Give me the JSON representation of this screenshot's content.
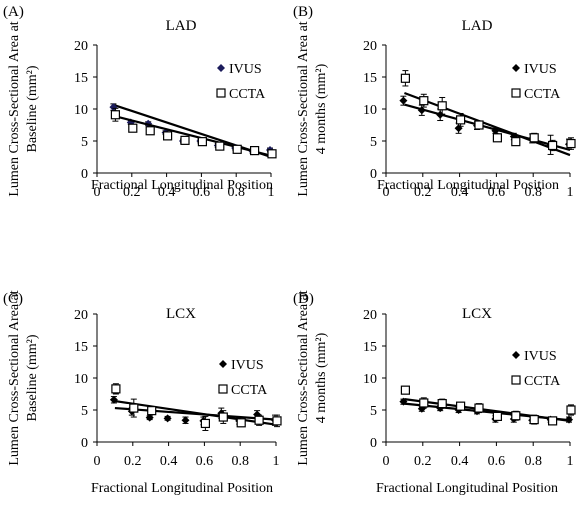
{
  "chart_data": [
    {
      "type": "scatter",
      "panel_label": "(A)",
      "title": "LAD",
      "xlabel": "Fractional Longitudinal Position",
      "ylabel_lines": [
        "Lumen Cross-Sectional Area at",
        "Baseline (mm²)"
      ],
      "xlim": [
        0,
        1
      ],
      "ylim": [
        0,
        20
      ],
      "x_ticks": [
        "0",
        "0.2",
        "0.4",
        "0.6",
        "0.8",
        "1"
      ],
      "y_ticks": [
        "0",
        "5",
        "10",
        "15",
        "20"
      ],
      "legend_position": "right",
      "series": [
        {
          "name": "IVUS",
          "marker": "diamond",
          "color": "#1c1c5c",
          "x": [
            0.1,
            0.2,
            0.3,
            0.4,
            0.5,
            0.6,
            0.7,
            0.8,
            0.9,
            1.0
          ],
          "y": [
            10.3,
            7.9,
            7.7,
            6.3,
            5.0,
            5.0,
            4.3,
            3.9,
            3.4,
            3.6
          ],
          "err": [
            0.5,
            0.3,
            0.3,
            0.3,
            0.3,
            0.3,
            0.3,
            0.3,
            0.3,
            0.3
          ],
          "fit": [
            10.6,
            2.5
          ]
        },
        {
          "name": "CCTA",
          "marker": "square-open",
          "color": "#000000",
          "x": [
            0.1,
            0.2,
            0.3,
            0.4,
            0.5,
            0.6,
            0.7,
            0.8,
            0.9,
            1.0
          ],
          "y": [
            9.1,
            7.0,
            6.6,
            5.8,
            5.1,
            4.9,
            4.2,
            3.7,
            3.5,
            3.0
          ],
          "err": [
            1.0,
            0.4,
            0.3,
            0.4,
            0.3,
            0.3,
            0.3,
            0.3,
            0.3,
            0.4
          ],
          "fit": [
            8.9,
            2.7
          ]
        }
      ]
    },
    {
      "type": "scatter",
      "panel_label": "(B)",
      "title": "LAD",
      "xlabel": "Fractional Longitudinal Position",
      "ylabel_lines": [
        "Lumen Cross-Sectional Area at",
        "4 months (mm²)"
      ],
      "xlim": [
        0,
        1
      ],
      "ylim": [
        0,
        20
      ],
      "x_ticks": [
        "0",
        "0.2",
        "0.4",
        "0.6",
        "0.8",
        "1"
      ],
      "y_ticks": [
        "0",
        "5",
        "10",
        "15",
        "20"
      ],
      "legend_position": "right",
      "series": [
        {
          "name": "IVUS",
          "marker": "diamond",
          "color": "#000000",
          "x": [
            0.1,
            0.2,
            0.3,
            0.4,
            0.5,
            0.6,
            0.7,
            0.8,
            0.9,
            1.0
          ],
          "y": [
            11.3,
            9.8,
            9.1,
            7.0,
            7.4,
            6.6,
            5.7,
            5.4,
            4.4,
            4.5
          ],
          "err": [
            0.7,
            0.8,
            0.9,
            0.8,
            0.6,
            0.4,
            0.5,
            0.7,
            1.5,
            0.8
          ],
          "fit": [
            10.7,
            3.6
          ]
        },
        {
          "name": "CCTA",
          "marker": "square-open",
          "color": "#000000",
          "x": [
            0.1,
            0.2,
            0.3,
            0.4,
            0.5,
            0.6,
            0.7,
            0.8,
            0.9,
            1.0
          ],
          "y": [
            14.8,
            11.3,
            10.5,
            8.3,
            7.5,
            5.5,
            4.9,
            5.5,
            4.3,
            4.6
          ],
          "err": [
            1.2,
            1.0,
            1.3,
            1.0,
            0.6,
            0.3,
            0.6,
            0.7,
            0.8,
            0.9
          ],
          "fit": [
            12.5,
            2.8
          ]
        }
      ]
    },
    {
      "type": "scatter",
      "panel_label": "(C)",
      "title": "LCX",
      "xlabel": "Fractional Longitudinal Position",
      "ylabel_lines": [
        "Lumen Cross-Sectional Area at",
        "Baseline (mm²)"
      ],
      "xlim": [
        0,
        1
      ],
      "ylim": [
        0,
        20
      ],
      "x_ticks": [
        "0",
        "0.2",
        "0.4",
        "0.6",
        "0.8",
        "1"
      ],
      "y_ticks": [
        "0",
        "5",
        "10",
        "15",
        "20"
      ],
      "legend_position": "right",
      "series": [
        {
          "name": "IVUS",
          "marker": "diamond",
          "color": "#000000",
          "x": [
            0.1,
            0.2,
            0.3,
            0.4,
            0.5,
            0.6,
            0.7,
            0.8,
            0.9,
            1.0
          ],
          "y": [
            6.6,
            4.8,
            3.8,
            3.7,
            3.4,
            3.3,
            4.5,
            3.3,
            4.3,
            3.4
          ],
          "err": [
            0.5,
            0.6,
            0.3,
            0.3,
            0.5,
            0.6,
            0.8,
            0.5,
            0.6,
            0.8
          ],
          "fit": [
            5.3,
            3.5
          ]
        },
        {
          "name": "CCTA",
          "marker": "square-open",
          "color": "#000000",
          "x": [
            0.1,
            0.2,
            0.3,
            0.6,
            0.7,
            0.8,
            0.9,
            1.0
          ],
          "y": [
            8.3,
            5.3,
            4.9,
            2.9,
            3.9,
            3.0,
            3.4,
            3.3
          ],
          "err": [
            0.8,
            1.4,
            0.6,
            1.1,
            1.0,
            0.6,
            0.8,
            0.9
          ],
          "fit": [
            6.4,
            2.7
          ]
        }
      ]
    },
    {
      "type": "scatter",
      "panel_label": "(D)",
      "title": "LCX",
      "xlabel": "Fractional Longitudinal Position",
      "ylabel_lines": [
        "Lumen Cross-Sectional Area at",
        "4 months (mm²)"
      ],
      "xlim": [
        0,
        1
      ],
      "ylim": [
        0,
        20
      ],
      "x_ticks": [
        "0",
        "0.2",
        "0.4",
        "0.6",
        "0.8",
        "1"
      ],
      "y_ticks": [
        "0",
        "5",
        "10",
        "15",
        "20"
      ],
      "legend_position": "right",
      "series": [
        {
          "name": "IVUS",
          "marker": "diamond",
          "color": "#000000",
          "x": [
            0.1,
            0.2,
            0.3,
            0.4,
            0.5,
            0.6,
            0.7,
            0.8,
            0.9,
            1.0
          ],
          "y": [
            6.3,
            5.2,
            5.3,
            5.0,
            4.8,
            3.6,
            3.6,
            3.4,
            3.5,
            3.5
          ],
          "err": [
            0.4,
            0.4,
            0.4,
            0.4,
            0.4,
            0.5,
            0.5,
            0.5,
            0.4,
            0.4
          ],
          "fit": [
            6.0,
            3.4
          ]
        },
        {
          "name": "CCTA",
          "marker": "square-open",
          "color": "#000000",
          "x": [
            0.1,
            0.2,
            0.3,
            0.4,
            0.5,
            0.6,
            0.7,
            0.8,
            0.9,
            1.0
          ],
          "y": [
            8.1,
            6.1,
            6.0,
            5.6,
            5.3,
            4.0,
            4.1,
            3.5,
            3.3,
            5.0
          ],
          "err": [
            0.6,
            0.8,
            0.7,
            0.6,
            0.7,
            0.6,
            0.7,
            0.7,
            0.6,
            0.8
          ],
          "fit": [
            6.7,
            3.3
          ]
        }
      ]
    }
  ]
}
